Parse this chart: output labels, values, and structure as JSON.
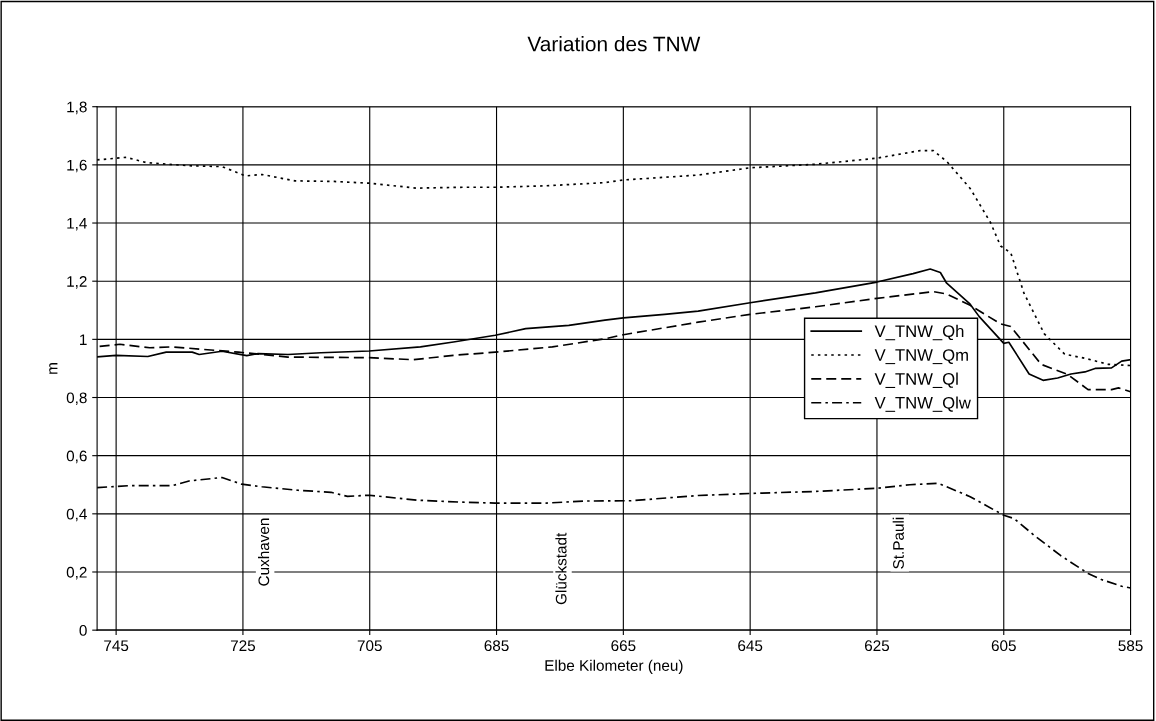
{
  "chart_data": {
    "type": "line",
    "title": "Variation des TNW",
    "xlabel": "Elbe Kilometer (neu)",
    "ylabel": "m",
    "xlim": [
      748,
      585
    ],
    "xticks": [
      745,
      725,
      705,
      685,
      665,
      645,
      625,
      605,
      585
    ],
    "ylim": [
      0,
      1.8
    ],
    "yticks": [
      0,
      {
        "value": 0.2,
        "label": "0,2"
      },
      {
        "value": 0.4,
        "label": "0,4"
      },
      {
        "value": 0.6,
        "label": "0,6"
      },
      {
        "value": 0.8,
        "label": "0,8"
      },
      1,
      {
        "value": 1.2,
        "label": "1,2"
      },
      {
        "value": 1.4,
        "label": "1,4"
      },
      {
        "value": 1.6,
        "label": "1,6"
      },
      {
        "value": 1.8,
        "label": "1,8"
      }
    ],
    "grid": true,
    "legend": "right",
    "marker": "none",
    "series": [
      {
        "name": "V_TNW_Qh",
        "color": "#000000",
        "line_style": "solid",
        "x": [
          748,
          745,
          740,
          737.1,
          733,
          731.9,
          728.3,
          724.4,
          722.6,
          717.9,
          712.7,
          705.1,
          697,
          691.8,
          685.2,
          680.4,
          673.6,
          667.9,
          665,
          658.5,
          653.2,
          645,
          634.7,
          625,
          619.3,
          616.6,
          615,
          614,
          610.3,
          608.9,
          605,
          604.2,
          601,
          598.8,
          596.5,
          594.4,
          592.2,
          590.6,
          588,
          586.4,
          585
        ],
        "values": [
          0.94,
          0.945,
          0.941,
          0.956,
          0.956,
          0.948,
          0.959,
          0.944,
          0.951,
          0.948,
          0.954,
          0.96,
          0.974,
          0.991,
          1.014,
          1.037,
          1.048,
          1.066,
          1.074,
          1.086,
          1.097,
          1.126,
          1.16,
          1.197,
          1.226,
          1.242,
          1.23,
          1.193,
          1.121,
          1.079,
          0.986,
          0.99,
          0.881,
          0.859,
          0.867,
          0.881,
          0.888,
          0.9,
          0.902,
          0.925,
          0.93
        ]
      },
      {
        "name": "V_TNW_Qm",
        "color": "#000000",
        "line_style": "dotted",
        "x": [
          748,
          743.4,
          740.3,
          733.5,
          728.3,
          724.6,
          722,
          716.8,
          710.6,
          705.1,
          697.6,
          690.3,
          685.2,
          677.2,
          667.9,
          665,
          653.2,
          645,
          634.7,
          625,
          618.2,
          616.1,
          614,
          610.3,
          607.1,
          605.5,
          603.9,
          601.8,
          598.6,
          595.4,
          592.2,
          588.5,
          585
        ],
        "values": [
          1.617,
          1.626,
          1.608,
          1.597,
          1.594,
          1.562,
          1.567,
          1.545,
          1.543,
          1.537,
          1.52,
          1.523,
          1.523,
          1.528,
          1.539,
          1.548,
          1.565,
          1.59,
          1.602,
          1.623,
          1.649,
          1.649,
          1.612,
          1.519,
          1.402,
          1.321,
          1.298,
          1.158,
          1.019,
          0.949,
          0.935,
          0.914,
          0.91
        ]
      },
      {
        "name": "V_TNW_Ql",
        "color": "#000000",
        "line_style": "dashed",
        "x": [
          747.6,
          744.4,
          739.7,
          736.1,
          729.3,
          725.7,
          717.9,
          705.1,
          698.1,
          691.8,
          685.2,
          676.2,
          667.9,
          665,
          653.2,
          645,
          634.7,
          625,
          616.1,
          614,
          610.3,
          605.5,
          603.9,
          599.1,
          594.9,
          591.7,
          588,
          586.9,
          585
        ],
        "values": [
          0.976,
          0.983,
          0.971,
          0.974,
          0.962,
          0.956,
          0.939,
          0.937,
          0.93,
          0.945,
          0.956,
          0.974,
          1.002,
          1.016,
          1.059,
          1.086,
          1.112,
          1.141,
          1.164,
          1.156,
          1.117,
          1.053,
          1.044,
          0.914,
          0.879,
          0.827,
          0.827,
          0.833,
          0.82
        ]
      },
      {
        "name": "V_TNW_Qlw",
        "color": "#000000",
        "line_style": "dashdot",
        "x": [
          748,
          742.9,
          736.1,
          733.5,
          728.3,
          725.2,
          722,
          716.3,
          711.1,
          708.5,
          705.1,
          697.6,
          690.3,
          685.2,
          677.2,
          671,
          663.8,
          653.2,
          645,
          634.7,
          625,
          619.8,
          615.3,
          610.3,
          605,
          603.4,
          600.2,
          596,
          591.7,
          589.6,
          586.4,
          585
        ],
        "values": [
          0.49,
          0.497,
          0.497,
          0.513,
          0.525,
          0.502,
          0.493,
          0.481,
          0.474,
          0.46,
          0.464,
          0.447,
          0.44,
          0.437,
          0.437,
          0.444,
          0.445,
          0.463,
          0.47,
          0.477,
          0.488,
          0.5,
          0.505,
          0.459,
          0.395,
          0.384,
          0.326,
          0.256,
          0.195,
          0.174,
          0.151,
          0.145
        ]
      }
    ],
    "annotations": [
      {
        "text": "Cuxhaven",
        "x": 721.5,
        "y": 0.492
      },
      {
        "text": "Glückstadt",
        "x": 674.6,
        "y": 0.44
      },
      {
        "text": "St.Pauli",
        "x": 621.4,
        "y": 0.495
      }
    ]
  }
}
